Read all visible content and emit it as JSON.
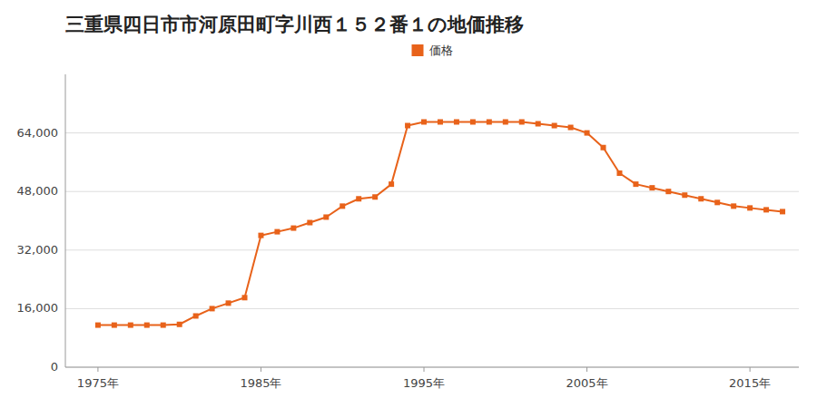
{
  "chart_data": {
    "type": "line",
    "title": "三重県四日市市河原田町字川西１５２番１の地価推移",
    "x": [
      1975,
      1976,
      1977,
      1978,
      1979,
      1980,
      1981,
      1982,
      1983,
      1984,
      1985,
      1986,
      1987,
      1988,
      1989,
      1990,
      1991,
      1992,
      1993,
      1994,
      1995,
      1996,
      1997,
      1998,
      1999,
      2000,
      2001,
      2002,
      2003,
      2004,
      2005,
      2006,
      2007,
      2008,
      2009,
      2010,
      2011,
      2012,
      2013,
      2014,
      2015,
      2016,
      2017
    ],
    "series": [
      {
        "name": "価格",
        "color": "#e8621a",
        "marker": "square",
        "values": [
          11500,
          11500,
          11500,
          11500,
          11500,
          11700,
          14000,
          16000,
          17500,
          19000,
          36000,
          37000,
          38000,
          39500,
          41000,
          44000,
          46000,
          46500,
          50000,
          66000,
          67000,
          67000,
          67000,
          67000,
          67000,
          67000,
          67000,
          66500,
          66000,
          65500,
          64000,
          60000,
          53000,
          50000,
          49000,
          48000,
          47000,
          46000,
          45000,
          44000,
          43500,
          43000,
          42500
        ]
      }
    ],
    "xlim": [
      1973,
      2018
    ],
    "xticks": [
      {
        "value": 1975,
        "label": "1975年"
      },
      {
        "value": 1985,
        "label": "1985年"
      },
      {
        "value": 1995,
        "label": "1995年"
      },
      {
        "value": 2005,
        "label": "2005年"
      },
      {
        "value": 2015,
        "label": "2015年"
      }
    ],
    "ylim": [
      0,
      80000
    ],
    "yticks": [
      0,
      {
        "value": 16000,
        "label": "16,000"
      },
      {
        "value": 32000,
        "label": "32,000"
      },
      {
        "value": 48000,
        "label": "48,000"
      },
      {
        "value": 64000,
        "label": "64,000"
      }
    ],
    "grid": true,
    "legend": "top"
  }
}
